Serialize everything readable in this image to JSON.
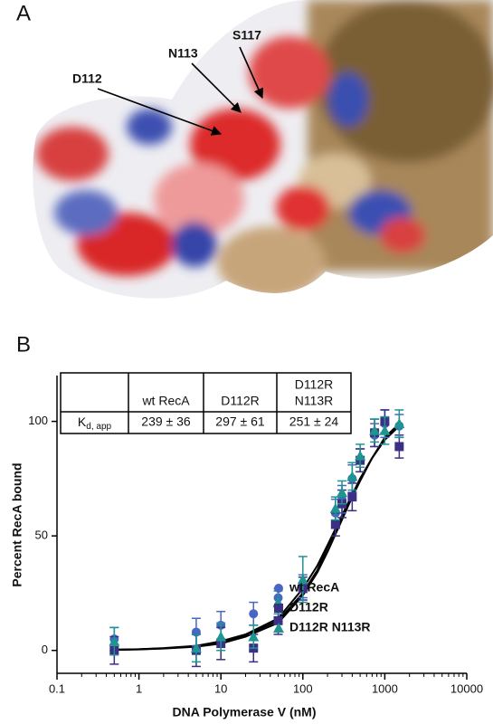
{
  "panel_a": {
    "label": "A",
    "annotations": [
      "D112",
      "N113",
      "S117"
    ]
  },
  "chart_data": {
    "type": "scatter",
    "panel_label": "B",
    "x_label": "DNA Polymerase V (nM)",
    "y_label": "Percent RecA bound",
    "log_x": true,
    "xlim": [
      0.1,
      10000
    ],
    "xticks": [
      0.1,
      1,
      10,
      100,
      1000,
      10000
    ],
    "ylim": [
      -10,
      120
    ],
    "yticks": [
      0,
      50,
      100
    ],
    "x": [
      0.5,
      5,
      10,
      25,
      50,
      100,
      250,
      300,
      400,
      500,
      750,
      1000,
      1500
    ],
    "series": [
      {
        "name": "wt RecA",
        "color": "#4a66c4",
        "marker": "circle",
        "values": [
          5,
          8,
          11,
          16,
          23,
          28,
          60,
          66,
          75,
          83,
          94,
          99,
          98
        ],
        "errors": [
          5,
          6,
          6,
          5,
          4,
          5,
          6,
          6,
          6,
          5,
          5,
          6,
          5
        ]
      },
      {
        "name": "D112R",
        "color": "#3d2e86",
        "marker": "square",
        "values": [
          0,
          0,
          3,
          1,
          13,
          27,
          55,
          64,
          67,
          83,
          95,
          100,
          89
        ],
        "errors": [
          6,
          7,
          7,
          6,
          6,
          5,
          5,
          6,
          6,
          5,
          6,
          5,
          5
        ]
      },
      {
        "name": "D112R N113R",
        "color": "#1d9590",
        "marker": "triangle",
        "values": [
          4,
          1,
          6,
          6,
          21,
          31,
          62,
          69,
          76,
          85,
          96,
          96,
          99
        ],
        "errors": [
          6,
          6,
          6,
          5,
          5,
          10,
          5,
          5,
          6,
          5,
          5,
          6,
          6
        ]
      }
    ],
    "fit_color": "#000000",
    "fit_x": [
      0.5,
      1,
      2,
      5,
      10,
      20,
      50,
      100,
      150,
      200,
      300,
      400,
      500,
      700,
      1000,
      1500
    ],
    "fits": [
      [
        0.3,
        0.5,
        1,
        2,
        4,
        7,
        14,
        27,
        37,
        46,
        59,
        68,
        75,
        84,
        92,
        98
      ],
      [
        0.2,
        0.4,
        0.8,
        1.6,
        3,
        6,
        12,
        24,
        34,
        43,
        57,
        67,
        74,
        84,
        93,
        99
      ],
      [
        0.3,
        0.5,
        0.9,
        1.8,
        3.5,
        6.5,
        13,
        25,
        35,
        45,
        58,
        67,
        75,
        84,
        92,
        98
      ]
    ],
    "table": {
      "columns": [
        [
          "wt RecA"
        ],
        [
          "D112R"
        ],
        [
          "D112R",
          "N113R"
        ]
      ],
      "rows": [
        {
          "label": "K",
          "label_sub": "d, app",
          "cells": [
            "239 ± 36",
            "297 ± 61",
            "251 ± 24"
          ]
        }
      ]
    }
  }
}
